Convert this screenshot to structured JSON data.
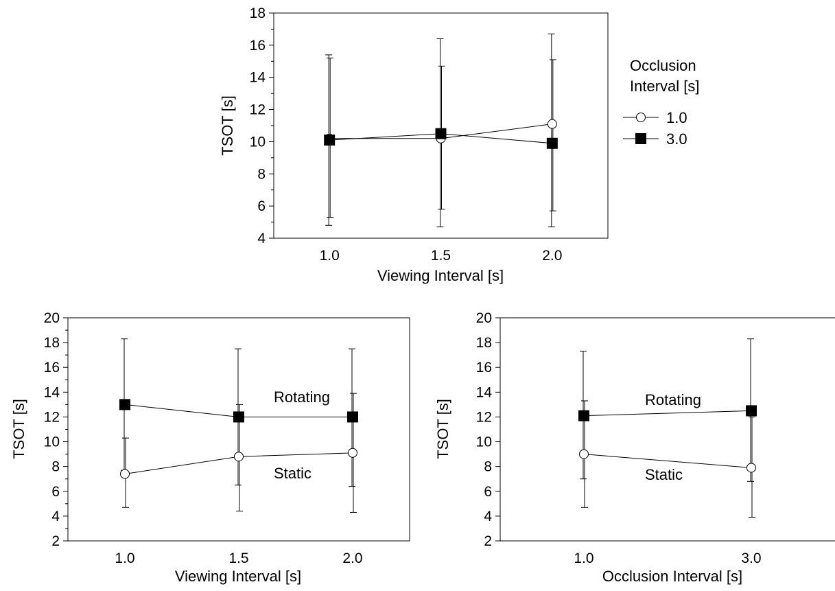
{
  "chart_data": [
    {
      "type": "line",
      "xlabel": "Viewing Interval [s]",
      "ylabel": "TSOT [s]",
      "x": [
        1.0,
        1.5,
        2.0
      ],
      "x_tick_labels": [
        "1.0",
        "1.5",
        "2.0"
      ],
      "xlim": [
        0.75,
        2.25
      ],
      "ylim": [
        4,
        18
      ],
      "y_ticks": [
        4,
        6,
        8,
        10,
        12,
        14,
        16,
        18
      ],
      "y_tick_labels": [
        "4",
        "6",
        "8",
        "10",
        "12",
        "14",
        "16",
        "18"
      ],
      "legend": {
        "title_lines": [
          "Occlusion",
          "Interval [s]"
        ],
        "placement": "right"
      },
      "series": [
        {
          "name": "1.0",
          "marker": "open-circle",
          "values": [
            10.2,
            10.2,
            11.1
          ],
          "err_low": [
            4.8,
            4.7,
            4.7
          ],
          "err_high": [
            15.4,
            16.4,
            16.7
          ]
        },
        {
          "name": "3.0",
          "marker": "filled-square",
          "values": [
            10.1,
            10.5,
            9.9
          ],
          "err_low": [
            5.3,
            5.8,
            5.7
          ],
          "err_high": [
            15.2,
            14.7,
            15.1
          ]
        }
      ]
    },
    {
      "type": "line",
      "xlabel": "Viewing Interval [s]",
      "ylabel": "TSOT [s]",
      "x": [
        1.0,
        1.5,
        2.0
      ],
      "x_tick_labels": [
        "1.0",
        "1.5",
        "2.0"
      ],
      "xlim": [
        0.75,
        2.25
      ],
      "ylim": [
        2,
        20
      ],
      "y_ticks": [
        2,
        4,
        6,
        8,
        10,
        12,
        14,
        16,
        18,
        20
      ],
      "y_tick_labels": [
        "2",
        "4",
        "6",
        "8",
        "10",
        "12",
        "14",
        "16",
        "18",
        "20"
      ],
      "series": [
        {
          "name": "Rotating",
          "marker": "filled-square",
          "values": [
            13.0,
            12.0,
            12.0
          ],
          "err_low": [
            7.7,
            6.5,
            6.4
          ],
          "err_high": [
            18.3,
            17.5,
            17.5
          ]
        },
        {
          "name": "Static",
          "marker": "open-circle",
          "values": [
            7.4,
            8.8,
            9.1
          ],
          "err_low": [
            4.7,
            4.4,
            4.3
          ],
          "err_high": [
            10.3,
            13.0,
            13.9
          ]
        }
      ]
    },
    {
      "type": "line",
      "xlabel": "Occlusion Interval [s]",
      "ylabel": "TSOT [s]",
      "x": [
        1.0,
        3.0
      ],
      "x_tick_labels": [
        "1.0",
        "3.0"
      ],
      "xlim": [
        0.0,
        4.0
      ],
      "ylim": [
        2,
        20
      ],
      "y_ticks": [
        2,
        4,
        6,
        8,
        10,
        12,
        14,
        16,
        18,
        20
      ],
      "y_tick_labels": [
        "2",
        "4",
        "6",
        "8",
        "10",
        "12",
        "14",
        "16",
        "18",
        "20"
      ],
      "series": [
        {
          "name": "Rotating",
          "marker": "filled-square",
          "values": [
            12.1,
            12.5
          ],
          "err_low": [
            7.0,
            6.8
          ],
          "err_high": [
            17.3,
            18.3
          ]
        },
        {
          "name": "Static",
          "marker": "open-circle",
          "values": [
            9.0,
            7.9
          ],
          "err_low": [
            4.7,
            3.9
          ],
          "err_high": [
            13.3,
            12.0
          ]
        }
      ]
    }
  ]
}
